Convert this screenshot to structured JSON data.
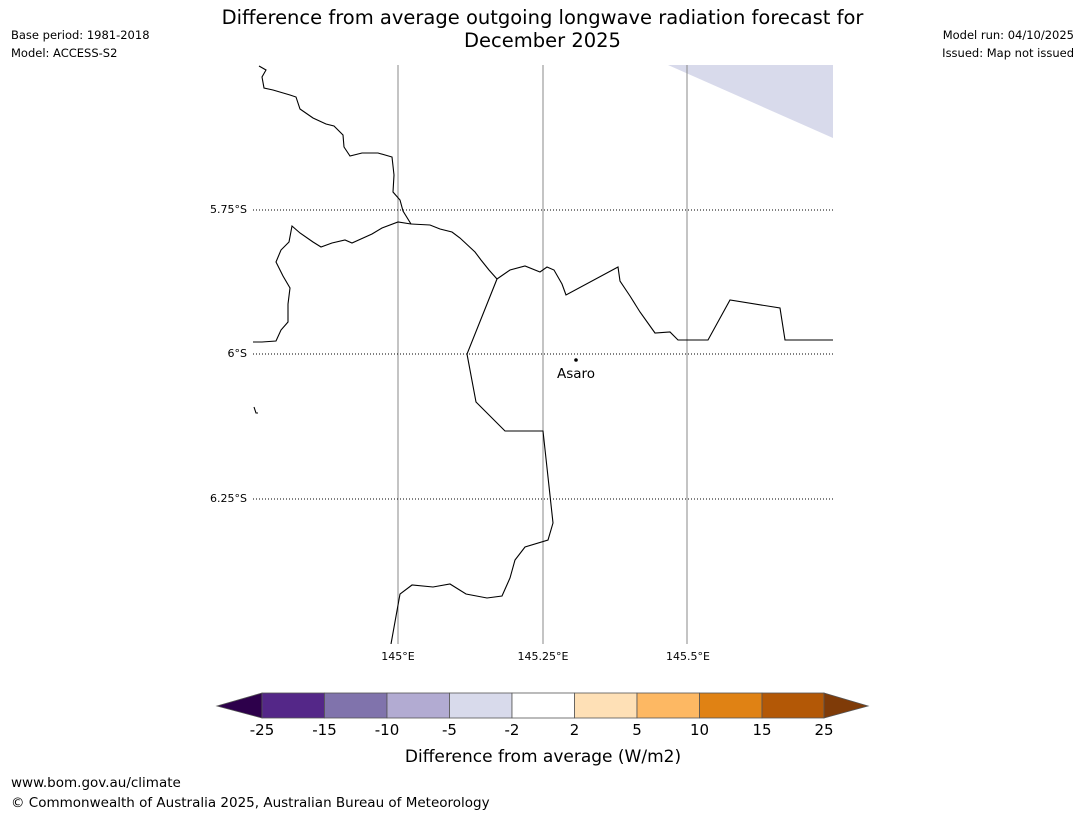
{
  "title_line1": "Difference from average outgoing longwave radiation forecast for",
  "title_line2": "December 2025",
  "meta": {
    "base_period": "Base period: 1981-2018",
    "model": "Model: ACCESS-S2",
    "model_run": "Model run: 04/10/2025",
    "issued": "Issued: Map not issued"
  },
  "map": {
    "lat_labels": [
      "5.75°S",
      "6°S",
      "6.25°S"
    ],
    "lon_labels": [
      "145°E",
      "145.25°E",
      "145.5°E"
    ],
    "place": {
      "name": "Asaro",
      "lat": -6.01,
      "lon": 145.29
    }
  },
  "legend": {
    "tick_labels": [
      "-25",
      "-15",
      "-10",
      "-5",
      "-2",
      "2",
      "5",
      "10",
      "15",
      "25"
    ],
    "label": "Difference from average (W/m2)",
    "colors": {
      "lt_-25": "#2d004b",
      "-25_-15": "#542788",
      "-15_-10": "#8073ac",
      "-10_-5": "#b2abd2",
      "-5_-2": "#d8daeb",
      "-2_2": "#ffffff",
      "2_5": "#fee0b6",
      "5_10": "#fdb863",
      "10_15": "#e08214",
      "15_25": "#b35806",
      "gt_25": "#7f3b08"
    }
  },
  "footer": {
    "url": "www.bom.gov.au/climate",
    "copyright": "© Commonwealth of Australia 2025, Australian Bureau of Meteorology"
  }
}
